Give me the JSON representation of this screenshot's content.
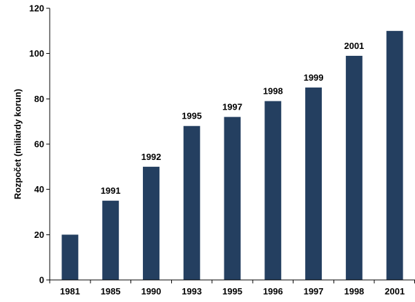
{
  "chart_data": {
    "type": "bar",
    "title": "",
    "xlabel": "",
    "ylabel": "Rozpočet (miliardy korun)",
    "ylim": [
      0,
      120
    ],
    "yticks": [
      0,
      20,
      40,
      60,
      80,
      100,
      120
    ],
    "grid": false,
    "legend": "none",
    "bar_color": "#243F60",
    "categories": [
      "1981",
      "1985",
      "1990",
      "1993",
      "1995",
      "1996",
      "1997",
      "1998",
      "2001"
    ],
    "values": [
      20,
      35,
      50,
      68,
      72,
      79,
      85,
      99,
      110
    ],
    "data_labels": [
      "",
      "1991",
      "1992",
      "1995",
      "1997",
      "1998",
      "1999",
      "2001",
      ""
    ]
  }
}
